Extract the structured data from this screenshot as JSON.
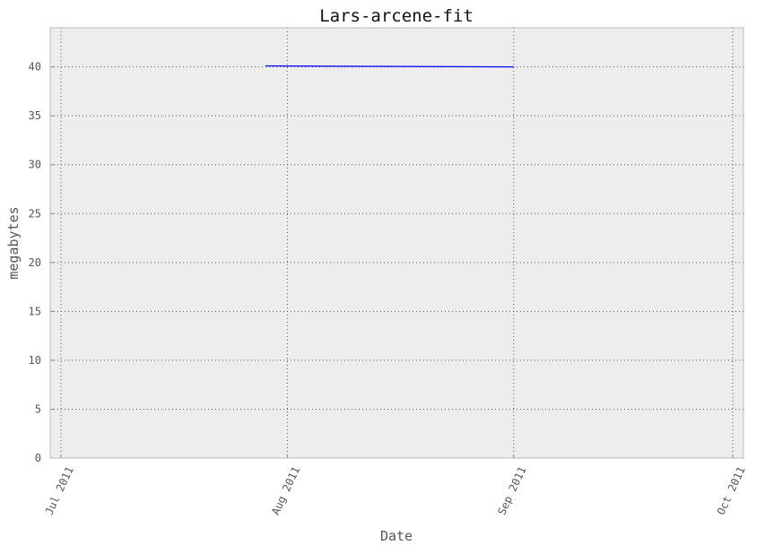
{
  "chart_data": {
    "type": "line",
    "title": "Lars-arcene-fit",
    "xlabel": "Date",
    "ylabel": "megabytes",
    "xlim": [
      "2011-07-01",
      "2011-10-01"
    ],
    "ylim": [
      0,
      44
    ],
    "x_ticks": [
      {
        "value": "2011-07-01",
        "label": "Jul 2011"
      },
      {
        "value": "2011-08-01",
        "label": "Aug 2011"
      },
      {
        "value": "2011-09-01",
        "label": "Sep 2011"
      },
      {
        "value": "2011-10-01",
        "label": "Oct 2011"
      }
    ],
    "y_ticks": [
      0,
      5,
      10,
      15,
      20,
      25,
      30,
      35,
      40
    ],
    "grid": true,
    "background_color": "#ededed",
    "series": [
      {
        "color": "#0000ff",
        "x": [
          "2011-07-29",
          "2011-09-01"
        ],
        "values": [
          40.1,
          40.0
        ]
      }
    ]
  }
}
